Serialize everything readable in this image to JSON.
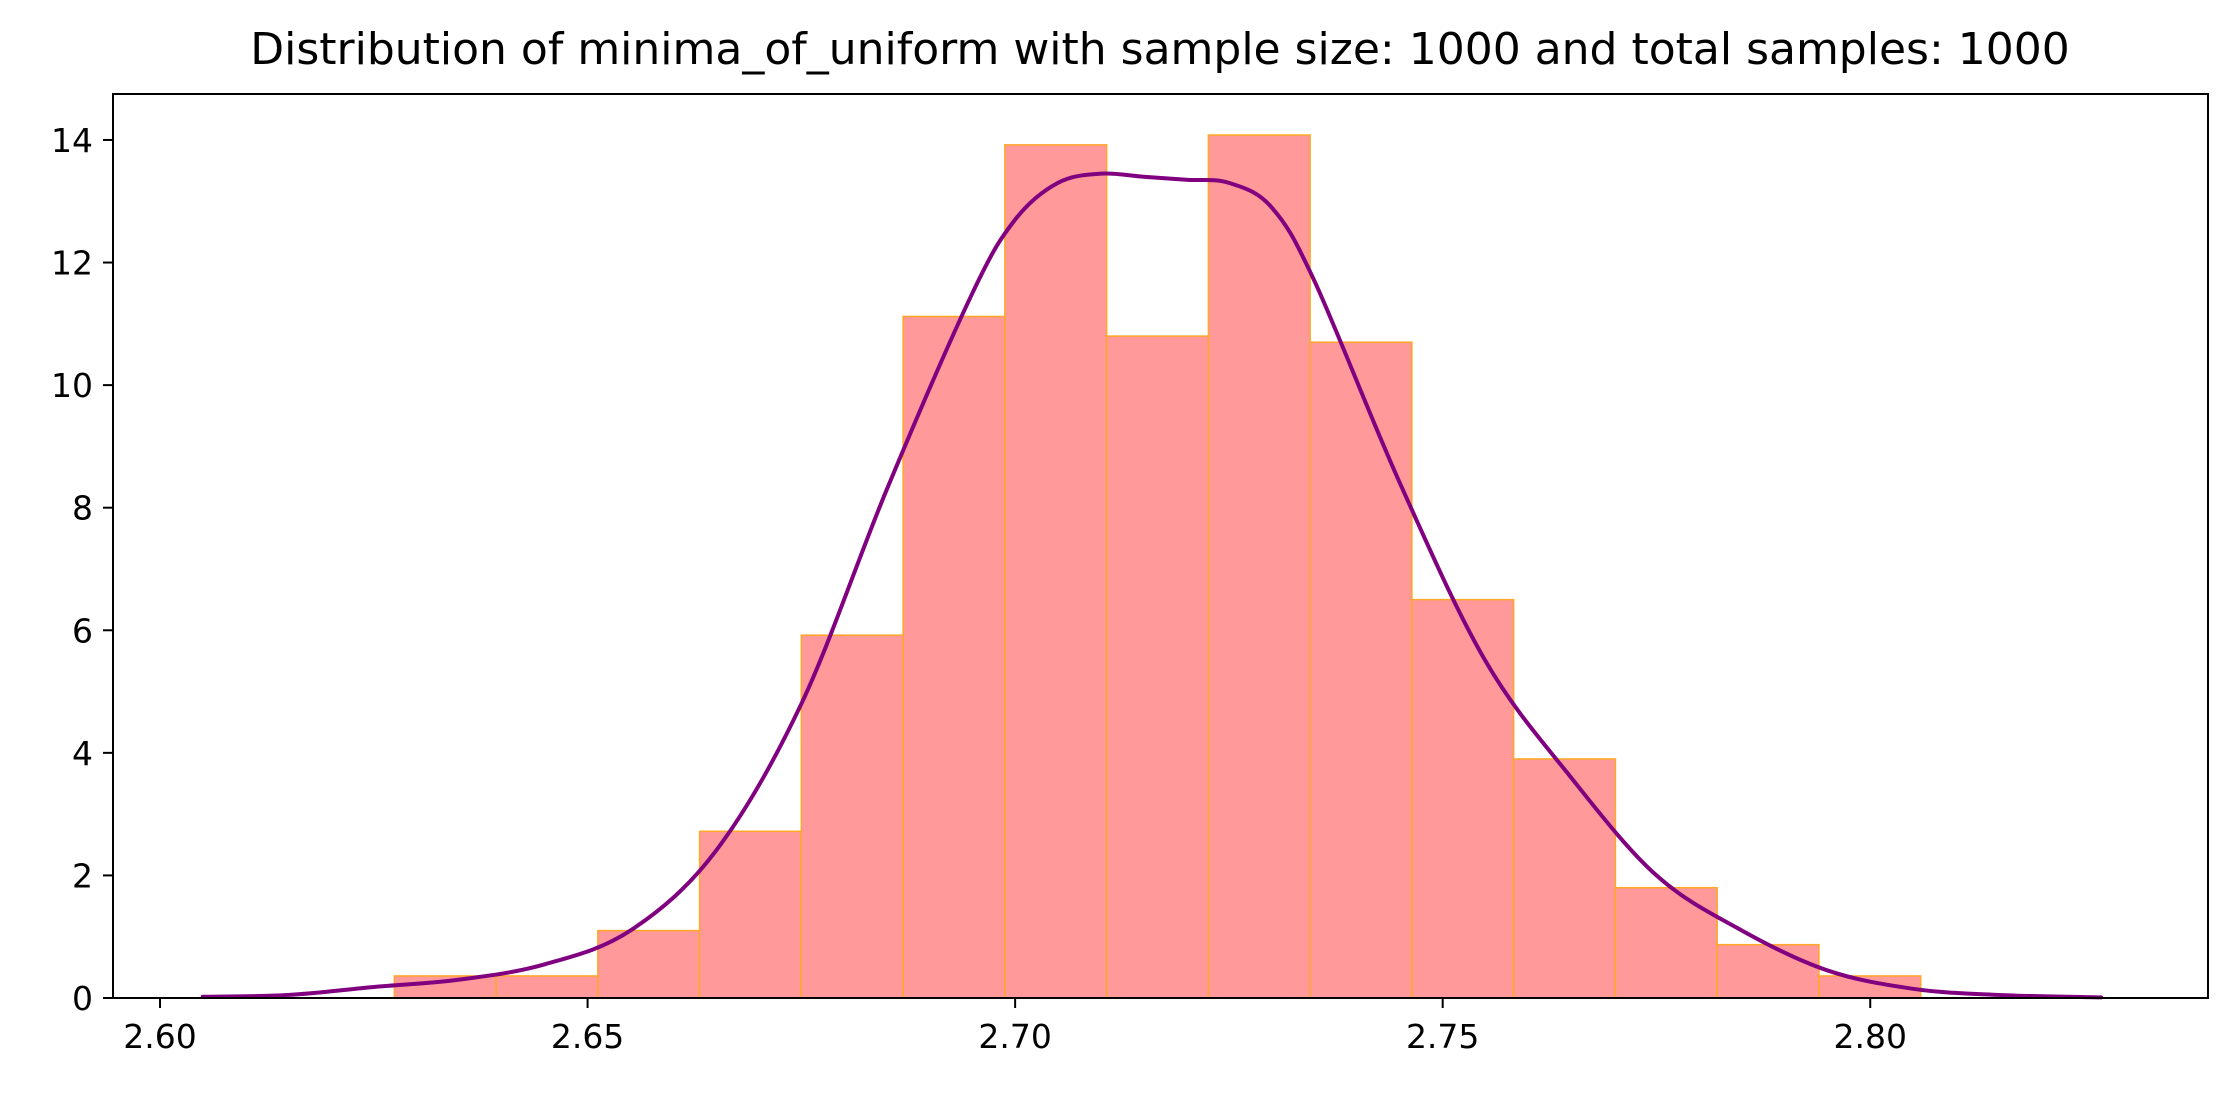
{
  "chart_data": {
    "type": "bar",
    "title": "Distribution of minima_of_uniform with sample size: 1000 and total samples: 1000",
    "xlabel": "",
    "ylabel": "",
    "xlim": [
      2.5945,
      2.8395
    ],
    "ylim": [
      0,
      14.75
    ],
    "grid": false,
    "legend": "none",
    "x_ticks": [
      2.6,
      2.65,
      2.7,
      2.75,
      2.8
    ],
    "x_tick_labels": [
      "2.60",
      "2.65",
      "2.70",
      "2.75",
      "2.80"
    ],
    "y_ticks": [
      0,
      2,
      4,
      6,
      8,
      10,
      12,
      14
    ],
    "y_tick_labels": [
      "0",
      "2",
      "4",
      "6",
      "8",
      "10",
      "12",
      "14"
    ],
    "histogram": {
      "bin_edges": [
        2.6274,
        2.6393,
        2.6512,
        2.6631,
        2.675,
        2.6869,
        2.6988,
        2.7107,
        2.7226,
        2.7345,
        2.7464,
        2.7583,
        2.7702,
        2.7821,
        2.794,
        2.8059
      ],
      "density": [
        0.36,
        0.36,
        1.1,
        2.72,
        5.92,
        11.12,
        13.92,
        10.8,
        14.08,
        10.7,
        6.5,
        3.9,
        1.8,
        0.87,
        0.36
      ],
      "fill_color": "#ff999a",
      "edge_color": "#ffa726"
    },
    "kde": {
      "color": "#800080",
      "x": [
        2.605,
        2.615,
        2.625,
        2.635,
        2.645,
        2.655,
        2.665,
        2.675,
        2.685,
        2.695,
        2.7,
        2.705,
        2.71,
        2.715,
        2.72,
        2.725,
        2.73,
        2.735,
        2.745,
        2.755,
        2.765,
        2.775,
        2.785,
        2.795,
        2.805,
        2.815,
        2.827
      ],
      "y": [
        0.02,
        0.05,
        0.18,
        0.3,
        0.55,
        1.1,
        2.4,
        4.8,
        8.3,
        11.5,
        12.7,
        13.3,
        13.45,
        13.4,
        13.35,
        13.3,
        12.9,
        11.7,
        8.4,
        5.5,
        3.6,
        2.0,
        1.1,
        0.45,
        0.15,
        0.05,
        0.01
      ]
    }
  }
}
